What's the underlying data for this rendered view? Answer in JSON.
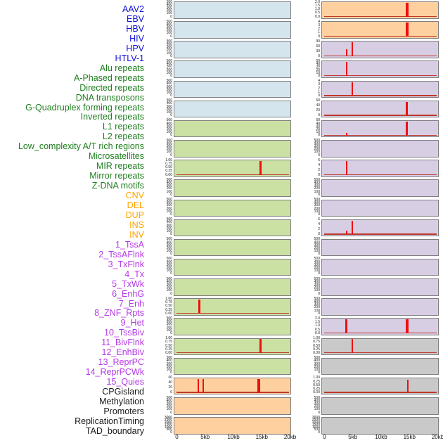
{
  "chart_data": {
    "type": "bar",
    "variant": "genomic-signal-tracks",
    "title": "",
    "x_axis": {
      "tick_labels": [
        "0",
        "5kb",
        "10kb",
        "15kb",
        "20kb"
      ],
      "tick_kb": [
        0,
        5,
        10,
        15,
        20
      ],
      "range_kb": [
        0,
        20
      ],
      "unit": "kb"
    },
    "colors": {
      "label_colors": {
        "virus": "#1111d6",
        "repeat": "#1e7e1e",
        "sv": "#ffa300",
        "chromatin": "#b438e6",
        "other": "#1a1a1a"
      },
      "track_bg": {
        "virus": "#d5e5ee",
        "repeat": "#cbe1a4",
        "sv": "#fed0a0",
        "chromatin": "#d7cee4",
        "other": "#c9c9c9"
      },
      "spike": "#ee0f0f",
      "baseline": "#c0392b",
      "plot_border": "#7e7e7e"
    },
    "tracks": [
      {
        "label": "AAV2",
        "group": "virus",
        "y_ticks": [
          "500",
          "400",
          "300",
          "200",
          "100",
          "0"
        ],
        "baseline": false,
        "spikes": []
      },
      {
        "label": "EBV",
        "group": "virus",
        "y_ticks": [
          "500",
          "400",
          "300",
          "200",
          "100",
          "0"
        ],
        "baseline": false,
        "spikes": []
      },
      {
        "label": "HBV",
        "group": "virus",
        "y_ticks": [
          "500",
          "400",
          "300",
          "200",
          "100",
          "0"
        ],
        "baseline": false,
        "spikes": []
      },
      {
        "label": "HIV",
        "group": "virus",
        "y_ticks": [
          "500",
          "400",
          "300",
          "200",
          "100",
          "0"
        ],
        "baseline": false,
        "spikes": []
      },
      {
        "label": "HPV",
        "group": "virus",
        "y_ticks": [
          "500",
          "400",
          "300",
          "200",
          "100",
          "0"
        ],
        "baseline": false,
        "spikes": []
      },
      {
        "label": "HTLV-1",
        "group": "virus",
        "y_ticks": [
          "500",
          "400",
          "300",
          "200",
          "100",
          "0"
        ],
        "baseline": false,
        "spikes": []
      },
      {
        "label": "Alu repeats",
        "group": "repeat",
        "y_ticks": [
          "500",
          "400",
          "300",
          "200",
          "100",
          "0"
        ],
        "baseline": false,
        "spikes": []
      },
      {
        "label": "A-Phased repeats",
        "group": "repeat",
        "y_ticks": [
          "500",
          "400",
          "300",
          "200",
          "100",
          "0"
        ],
        "baseline": false,
        "spikes": []
      },
      {
        "label": "Directed repeats",
        "group": "repeat",
        "y_ticks": [
          "1.00",
          "0.75",
          "0.50",
          "0.25",
          "0.00"
        ],
        "baseline": true,
        "spikes": [
          {
            "kb": 14.8,
            "frac": 1,
            "w": 2.2
          }
        ]
      },
      {
        "label": "DNA transposons",
        "group": "repeat",
        "y_ticks": [
          "500",
          "400",
          "300",
          "200",
          "100",
          "0"
        ],
        "baseline": false,
        "spikes": []
      },
      {
        "label": "G-Quadruplex forming repeats",
        "group": "repeat",
        "y_ticks": [
          "500",
          "400",
          "300",
          "200",
          "100",
          "0"
        ],
        "baseline": false,
        "spikes": []
      },
      {
        "label": "Inverted repeats",
        "group": "repeat",
        "y_ticks": [
          "500",
          "400",
          "300",
          "200",
          "100",
          "0"
        ],
        "baseline": false,
        "spikes": []
      },
      {
        "label": "L1 repeats",
        "group": "repeat",
        "y_ticks": [
          "500",
          "400",
          "300",
          "200",
          "100",
          "0"
        ],
        "baseline": false,
        "spikes": []
      },
      {
        "label": "L2 repeats",
        "group": "repeat",
        "y_ticks": [
          "500",
          "400",
          "300",
          "200",
          "100",
          "0"
        ],
        "baseline": false,
        "spikes": []
      },
      {
        "label": "Low_complexity A/T rich regions",
        "group": "repeat",
        "y_ticks": [
          "500",
          "400",
          "300",
          "200",
          "100",
          "0"
        ],
        "baseline": false,
        "spikes": []
      },
      {
        "label": "Microsatellites",
        "group": "repeat",
        "y_ticks": [
          "1.00",
          "0.75",
          "0.50",
          "0.25",
          "0.00"
        ],
        "baseline": true,
        "spikes": [
          {
            "kb": 4.0,
            "frac": 1,
            "w": 2.2
          }
        ]
      },
      {
        "label": "MIR repeats",
        "group": "repeat",
        "y_ticks": [
          "500",
          "400",
          "300",
          "200",
          "100",
          "0"
        ],
        "baseline": false,
        "spikes": []
      },
      {
        "label": "Mirror repeats",
        "group": "repeat",
        "y_ticks": [
          "1.00",
          "0.75",
          "0.50",
          "0.25",
          "0.00"
        ],
        "baseline": true,
        "spikes": [
          {
            "kb": 14.8,
            "frac": 1,
            "w": 2.2
          }
        ]
      },
      {
        "label": "Z-DNA motifs",
        "group": "repeat",
        "y_ticks": [
          "500",
          "400",
          "300",
          "200",
          "100",
          "0"
        ],
        "baseline": false,
        "spikes": []
      },
      {
        "label": "CNV",
        "group": "sv",
        "y_ticks": [
          "60",
          "40",
          "20",
          "0"
        ],
        "baseline": true,
        "spikes": [
          {
            "kb": 3.8,
            "frac": 1,
            "w": 2.4
          },
          {
            "kb": 4.7,
            "frac": 1,
            "w": 2
          },
          {
            "kb": 14.5,
            "frac": 1,
            "w": 3.4
          }
        ]
      },
      {
        "label": "DEL",
        "group": "sv",
        "y_ticks": [
          "500",
          "400",
          "300",
          "200",
          "100",
          "0"
        ],
        "baseline": false,
        "spikes": []
      },
      {
        "label": "DUP",
        "group": "sv",
        "y_ticks": [
          "3000",
          "2500",
          "2000",
          "1500",
          "1000",
          "500",
          "0"
        ],
        "baseline": false,
        "spikes": []
      },
      {
        "label": "INS",
        "group": "sv",
        "y_ticks": [
          "2.0",
          "1.5",
          "1.0",
          "0.5",
          "0.0"
        ],
        "baseline": true,
        "spikes": [
          {
            "kb": 14.6,
            "frac": 1,
            "w": 3.4
          }
        ]
      },
      {
        "label": "INV",
        "group": "sv",
        "y_ticks": [
          "4",
          "3",
          "2",
          "1",
          "0"
        ],
        "baseline": true,
        "spikes": [
          {
            "kb": 14.6,
            "frac": 1,
            "w": 3.4
          }
        ]
      },
      {
        "label": "1_TssA",
        "group": "chromatin",
        "y_ticks": [
          "90",
          "60",
          "30",
          "0"
        ],
        "baseline": true,
        "spikes": [
          {
            "kb": 3.9,
            "frac": 0.52,
            "w": 2.2
          },
          {
            "kb": 4.9,
            "frac": 1,
            "w": 2.4
          }
        ]
      },
      {
        "label": "2_TssAFlnk",
        "group": "chromatin",
        "y_ticks": [
          "50",
          "40",
          "30",
          "20",
          "10",
          "0"
        ],
        "baseline": true,
        "spikes": [
          {
            "kb": 3.9,
            "frac": 1,
            "w": 2.2
          },
          {
            "kb": 5.3,
            "frac": 0.08,
            "w": 1.8
          }
        ]
      },
      {
        "label": "3_TxFlnk",
        "group": "chromatin",
        "y_ticks": [
          "4",
          "3",
          "2",
          "1",
          "0"
        ],
        "baseline": true,
        "spikes": [
          {
            "kb": 4.9,
            "frac": 1,
            "w": 2.2
          }
        ]
      },
      {
        "label": "4_Tx",
        "group": "chromatin",
        "y_ticks": [
          "60",
          "40",
          "20",
          "0"
        ],
        "baseline": true,
        "spikes": [
          {
            "kb": 14.6,
            "frac": 1,
            "w": 3
          }
        ]
      },
      {
        "label": "5_TxWk",
        "group": "chromatin",
        "y_ticks": [
          "50",
          "40",
          "30",
          "20",
          "10",
          "0"
        ],
        "baseline": true,
        "spikes": [
          {
            "kb": 3.9,
            "frac": 0.2,
            "w": 2
          },
          {
            "kb": 14.6,
            "frac": 1,
            "w": 3
          }
        ]
      },
      {
        "label": "6_EnhG",
        "group": "chromatin",
        "y_ticks": [
          "500",
          "400",
          "300",
          "200",
          "100",
          "0"
        ],
        "baseline": false,
        "spikes": []
      },
      {
        "label": "7_Enh",
        "group": "chromatin",
        "y_ticks": [
          "6",
          "4",
          "2",
          "0"
        ],
        "baseline": true,
        "spikes": [
          {
            "kb": 3.9,
            "frac": 1,
            "w": 2.2
          }
        ]
      },
      {
        "label": "8_ZNF_Rpts",
        "group": "chromatin",
        "y_ticks": [
          "500",
          "400",
          "300",
          "200",
          "100",
          "0"
        ],
        "baseline": false,
        "spikes": []
      },
      {
        "label": "9_Het",
        "group": "chromatin",
        "y_ticks": [
          "500",
          "400",
          "300",
          "200",
          "100",
          "0"
        ],
        "baseline": false,
        "spikes": []
      },
      {
        "label": "10_TssBiv",
        "group": "chromatin",
        "y_ticks": [
          "6",
          "4",
          "2",
          "0"
        ],
        "baseline": true,
        "spikes": [
          {
            "kb": 3.9,
            "frac": 0.27,
            "w": 2
          },
          {
            "kb": 4.9,
            "frac": 1,
            "w": 2.2
          }
        ]
      },
      {
        "label": "11_BivFlnk",
        "group": "chromatin",
        "y_ticks": [
          "500",
          "400",
          "300",
          "200",
          "100",
          "0"
        ],
        "baseline": false,
        "spikes": []
      },
      {
        "label": "12_EnhBiv",
        "group": "chromatin",
        "y_ticks": [
          "500",
          "400",
          "300",
          "200",
          "100",
          "0"
        ],
        "baseline": false,
        "spikes": []
      },
      {
        "label": "13_ReprPC",
        "group": "chromatin",
        "y_ticks": [
          "500",
          "400",
          "300",
          "200",
          "100",
          "0"
        ],
        "baseline": false,
        "spikes": []
      },
      {
        "label": "14_ReprPCWk",
        "group": "chromatin",
        "y_ticks": [
          "500",
          "400",
          "300",
          "200",
          "100",
          "0"
        ],
        "baseline": false,
        "spikes": []
      },
      {
        "label": "15_Quies",
        "group": "chromatin",
        "y_ticks": [
          "2.0",
          "1.5",
          "1.0",
          "0.5",
          "0.0"
        ],
        "baseline": true,
        "spikes": [
          {
            "kb": 3.9,
            "frac": 1,
            "w": 3
          },
          {
            "kb": 14.6,
            "frac": 1,
            "w": 3.4
          }
        ]
      },
      {
        "label": "CPGisland",
        "group": "other",
        "y_ticks": [
          "1.00",
          "0.75",
          "0.50",
          "0.25",
          "0.00"
        ],
        "baseline": true,
        "spikes": [
          {
            "kb": 4.9,
            "frac": 1,
            "w": 2.2
          }
        ]
      },
      {
        "label": "Methylation",
        "group": "other",
        "y_ticks": [
          "500",
          "400",
          "300",
          "200",
          "100",
          "0"
        ],
        "baseline": false,
        "spikes": []
      },
      {
        "label": "Promoters",
        "group": "other",
        "y_ticks": [
          "1.00",
          "0.75",
          "0.50",
          "0.25",
          "0.00"
        ],
        "baseline": true,
        "spikes": [
          {
            "kb": 14.7,
            "frac": 0.93,
            "w": 2.2
          }
        ]
      },
      {
        "label": "ReplicationTiming",
        "group": "other",
        "y_ticks": [
          "500",
          "400",
          "300",
          "200",
          "100",
          "0"
        ],
        "baseline": false,
        "spikes": []
      },
      {
        "label": "TAD_boundary",
        "group": "other",
        "y_ticks": [
          "3000",
          "2500",
          "2000",
          "1500",
          "1000",
          "500",
          "0"
        ],
        "baseline": false,
        "spikes": []
      }
    ]
  }
}
